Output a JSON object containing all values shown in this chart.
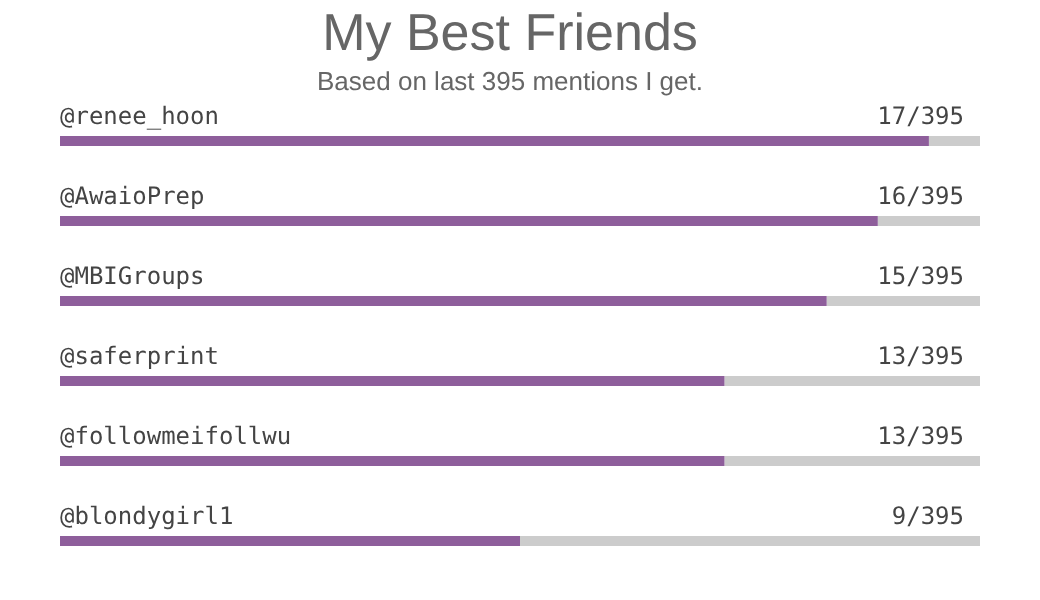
{
  "chart_data": {
    "type": "bar",
    "orientation": "horizontal",
    "title": "My Best Friends",
    "subtitle": "Based on last 395 mentions I get.",
    "categories": [
      "@renee_hoon",
      "@AwaioPrep",
      "@MBIGroups",
      "@saferprint",
      "@followmeifollwu",
      "@blondygirl1"
    ],
    "values": [
      17,
      16,
      15,
      13,
      13,
      9
    ],
    "value_labels": [
      "17/395",
      "16/395",
      "15/395",
      "13/395",
      "13/395",
      "9/395"
    ],
    "color": "#8e5e9b",
    "xlim": [
      0,
      18
    ]
  }
}
